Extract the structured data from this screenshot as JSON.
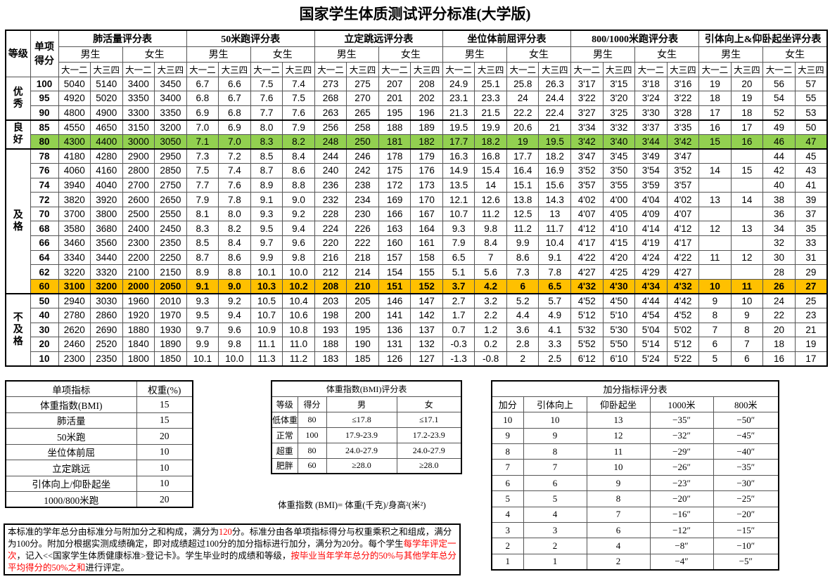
{
  "title": "国家学生体质测试评分标准(大学版)",
  "main_table": {
    "header_grade": "等级",
    "header_score": "单项得分",
    "groups": [
      "肺活量评分表",
      "50米跑评分表",
      "立定跳远评分表",
      "坐位体前屈评分表",
      "800/1000米跑评分表",
      "引体向上&仰卧起坐评分表"
    ],
    "sexes": [
      "男生",
      "女生"
    ],
    "years": [
      "大一二",
      "大三四"
    ],
    "grades": [
      {
        "label": "优秀",
        "rows": 3
      },
      {
        "label": "良好",
        "rows": 2
      },
      {
        "label": "及格",
        "rows": 10
      },
      {
        "label": "不及格",
        "rows": 5
      }
    ],
    "highlight_colors": {
      "green": "#92d050",
      "orange": "#ffc000"
    },
    "highlight_rows": {
      "80": "green",
      "60": "orange"
    },
    "rows": [
      {
        "score": "100",
        "values": [
          "5040",
          "5140",
          "3400",
          "3450",
          "6.7",
          "6.6",
          "7.5",
          "7.4",
          "273",
          "275",
          "207",
          "208",
          "24.9",
          "25.1",
          "25.8",
          "26.3",
          "3'17",
          "3'15",
          "3'18",
          "3'16",
          "19",
          "20",
          "56",
          "57"
        ]
      },
      {
        "score": "95",
        "values": [
          "4920",
          "5020",
          "3350",
          "3400",
          "6.8",
          "6.7",
          "7.6",
          "7.5",
          "268",
          "270",
          "201",
          "202",
          "23.1",
          "23.3",
          "24",
          "24.4",
          "3'22",
          "3'20",
          "3'24",
          "3'22",
          "18",
          "19",
          "54",
          "55"
        ]
      },
      {
        "score": "90",
        "values": [
          "4800",
          "4900",
          "3300",
          "3350",
          "6.9",
          "6.8",
          "7.7",
          "7.6",
          "263",
          "265",
          "195",
          "196",
          "21.3",
          "21.5",
          "22.2",
          "22.4",
          "3'27",
          "3'25",
          "3'30",
          "3'28",
          "17",
          "18",
          "52",
          "53"
        ]
      },
      {
        "score": "85",
        "values": [
          "4550",
          "4650",
          "3150",
          "3200",
          "7.0",
          "6.9",
          "8.0",
          "7.9",
          "256",
          "258",
          "188",
          "189",
          "19.5",
          "19.9",
          "20.6",
          "21",
          "3'34",
          "3'32",
          "3'37",
          "3'35",
          "16",
          "17",
          "49",
          "50"
        ]
      },
      {
        "score": "80",
        "values": [
          "4300",
          "4400",
          "3000",
          "3050",
          "7.1",
          "7.0",
          "8.3",
          "8.2",
          "248",
          "250",
          "181",
          "182",
          "17.7",
          "18.2",
          "19",
          "19.5",
          "3'42",
          "3'40",
          "3'44",
          "3'42",
          "15",
          "16",
          "46",
          "47"
        ]
      },
      {
        "score": "78",
        "values": [
          "4180",
          "4280",
          "2900",
          "2950",
          "7.3",
          "7.2",
          "8.5",
          "8.4",
          "244",
          "246",
          "178",
          "179",
          "16.3",
          "16.8",
          "17.7",
          "18.2",
          "3'47",
          "3'45",
          "3'49",
          "3'47",
          "",
          "",
          "44",
          "45"
        ]
      },
      {
        "score": "76",
        "values": [
          "4060",
          "4160",
          "2800",
          "2850",
          "7.5",
          "7.4",
          "8.7",
          "8.6",
          "240",
          "242",
          "175",
          "176",
          "14.9",
          "15.4",
          "16.4",
          "16.9",
          "3'52",
          "3'50",
          "3'54",
          "3'52",
          "14",
          "15",
          "42",
          "43"
        ]
      },
      {
        "score": "74",
        "values": [
          "3940",
          "4040",
          "2700",
          "2750",
          "7.7",
          "7.6",
          "8.9",
          "8.8",
          "236",
          "238",
          "172",
          "173",
          "13.5",
          "14",
          "15.1",
          "15.6",
          "3'57",
          "3'55",
          "3'59",
          "3'57",
          "",
          "",
          "40",
          "41"
        ]
      },
      {
        "score": "72",
        "values": [
          "3820",
          "3920",
          "2600",
          "2650",
          "7.9",
          "7.8",
          "9.1",
          "9.0",
          "232",
          "234",
          "169",
          "170",
          "12.1",
          "12.6",
          "13.8",
          "14.3",
          "4'02",
          "4'00",
          "4'04",
          "4'02",
          "13",
          "14",
          "38",
          "39"
        ]
      },
      {
        "score": "70",
        "values": [
          "3700",
          "3800",
          "2500",
          "2550",
          "8.1",
          "8.0",
          "9.3",
          "9.2",
          "228",
          "230",
          "166",
          "167",
          "10.7",
          "11.2",
          "12.5",
          "13",
          "4'07",
          "4'05",
          "4'09",
          "4'07",
          "",
          "",
          "36",
          "37"
        ]
      },
      {
        "score": "68",
        "values": [
          "3580",
          "3680",
          "2400",
          "2450",
          "8.3",
          "8.2",
          "9.5",
          "9.4",
          "224",
          "226",
          "163",
          "164",
          "9.3",
          "9.8",
          "11.2",
          "11.7",
          "4'12",
          "4'10",
          "4'14",
          "4'12",
          "12",
          "13",
          "34",
          "35"
        ]
      },
      {
        "score": "66",
        "values": [
          "3460",
          "3560",
          "2300",
          "2350",
          "8.5",
          "8.4",
          "9.7",
          "9.6",
          "220",
          "222",
          "160",
          "161",
          "7.9",
          "8.4",
          "9.9",
          "10.4",
          "4'17",
          "4'15",
          "4'19",
          "4'17",
          "",
          "",
          "32",
          "33"
        ]
      },
      {
        "score": "64",
        "values": [
          "3340",
          "3440",
          "2200",
          "2250",
          "8.7",
          "8.6",
          "9.9",
          "9.8",
          "216",
          "218",
          "157",
          "158",
          "6.5",
          "7",
          "8.6",
          "9.1",
          "4'22",
          "4'20",
          "4'24",
          "4'22",
          "11",
          "12",
          "30",
          "31"
        ]
      },
      {
        "score": "62",
        "values": [
          "3220",
          "3320",
          "2100",
          "2150",
          "8.9",
          "8.8",
          "10.1",
          "10.0",
          "212",
          "214",
          "154",
          "155",
          "5.1",
          "5.6",
          "7.3",
          "7.8",
          "4'27",
          "4'25",
          "4'29",
          "4'27",
          "",
          "",
          "28",
          "29"
        ]
      },
      {
        "score": "60",
        "values": [
          "3100",
          "3200",
          "2000",
          "2050",
          "9.1",
          "9.0",
          "10.3",
          "10.2",
          "208",
          "210",
          "151",
          "152",
          "3.7",
          "4.2",
          "6",
          "6.5",
          "4'32",
          "4'30",
          "4'34",
          "4'32",
          "10",
          "11",
          "26",
          "27"
        ]
      },
      {
        "score": "50",
        "values": [
          "2940",
          "3030",
          "1960",
          "2010",
          "9.3",
          "9.2",
          "10.5",
          "10.4",
          "203",
          "205",
          "146",
          "147",
          "2.7",
          "3.2",
          "5.2",
          "5.7",
          "4'52",
          "4'50",
          "4'44",
          "4'42",
          "9",
          "10",
          "24",
          "25"
        ]
      },
      {
        "score": "40",
        "values": [
          "2780",
          "2860",
          "1920",
          "1970",
          "9.5",
          "9.4",
          "10.7",
          "10.6",
          "198",
          "200",
          "141",
          "142",
          "1.7",
          "2.2",
          "4.4",
          "4.9",
          "5'12",
          "5'10",
          "4'54",
          "4'52",
          "8",
          "9",
          "22",
          "23"
        ]
      },
      {
        "score": "30",
        "values": [
          "2620",
          "2690",
          "1880",
          "1930",
          "9.7",
          "9.6",
          "10.9",
          "10.8",
          "193",
          "195",
          "136",
          "137",
          "0.7",
          "1.2",
          "3.6",
          "4.1",
          "5'32",
          "5'30",
          "5'04",
          "5'02",
          "7",
          "8",
          "20",
          "21"
        ]
      },
      {
        "score": "20",
        "values": [
          "2460",
          "2520",
          "1840",
          "1890",
          "9.9",
          "9.8",
          "11.1",
          "11.0",
          "188",
          "190",
          "131",
          "132",
          "-0.3",
          "0.2",
          "2.8",
          "3.3",
          "5'52",
          "5'50",
          "5'14",
          "5'12",
          "6",
          "7",
          "18",
          "19"
        ]
      },
      {
        "score": "10",
        "values": [
          "2300",
          "2350",
          "1800",
          "1850",
          "10.1",
          "10.0",
          "11.3",
          "11.2",
          "183",
          "185",
          "126",
          "127",
          "-1.3",
          "-0.8",
          "2",
          "2.5",
          "6'12",
          "6'10",
          "5'24",
          "5'22",
          "5",
          "6",
          "16",
          "17"
        ]
      }
    ]
  },
  "weights_table": {
    "headers": [
      "单项指标",
      "权重(%)"
    ],
    "rows": [
      [
        "体重指数(BMI)",
        "15"
      ],
      [
        "肺活量",
        "15"
      ],
      [
        "50米跑",
        "20"
      ],
      [
        "坐位体前屈",
        "10"
      ],
      [
        "立定跳远",
        "10"
      ],
      [
        "引体向上/仰卧起坐",
        "10"
      ],
      [
        "1000/800米跑",
        "20"
      ]
    ]
  },
  "bmi_table": {
    "title": "体重指数(BMI)评分表",
    "headers": [
      "等级",
      "得分",
      "男",
      "女"
    ],
    "rows": [
      [
        "低体重",
        "80",
        "≤17.8",
        "≤17.1"
      ],
      [
        "正常",
        "100",
        "17.9-23.9",
        "17.2-23.9"
      ],
      [
        "超重",
        "80",
        "24.0-27.9",
        "24.0-27.9"
      ],
      [
        "肥胖",
        "60",
        "≥28.0",
        "≥28.0"
      ]
    ],
    "formula": "体重指数 (BMI)= 体重(千克)/身高²(米²)"
  },
  "bonus_table": {
    "title": "加分指标评分表",
    "headers": [
      "加分",
      "引体向上",
      "仰卧起坐",
      "1000米",
      "800米"
    ],
    "rows": [
      [
        "10",
        "10",
        "13",
        "−35″",
        "−50″"
      ],
      [
        "9",
        "9",
        "12",
        "−32″",
        "−45″"
      ],
      [
        "8",
        "8",
        "11",
        "−29″",
        "−40″"
      ],
      [
        "7",
        "7",
        "10",
        "−26″",
        "−35″"
      ],
      [
        "6",
        "6",
        "9",
        "−23″",
        "−30″"
      ],
      [
        "5",
        "5",
        "8",
        "−20″",
        "−25″"
      ],
      [
        "4",
        "4",
        "7",
        "−16″",
        "−20″"
      ],
      [
        "3",
        "3",
        "6",
        "−12″",
        "−15″"
      ],
      [
        "2",
        "2",
        "4",
        "−8″",
        "−10″"
      ],
      [
        "1",
        "1",
        "2",
        "−4″",
        "−5″"
      ]
    ]
  },
  "note": {
    "accent_color": "#ff0000",
    "segments": [
      {
        "text": "本标准的学年总分由标准分与附加分之和构成，满分为",
        "red": false
      },
      {
        "text": "120",
        "red": true
      },
      {
        "text": "分。标准分由各单项指标得分与权重乘积之和组成，满分为100分。附加分根据实测成绩确定，即对成绩超过100分的加分指标进行加分，满分为20分。每个学生",
        "red": false
      },
      {
        "text": "每学年评定一次",
        "red": true
      },
      {
        "text": "，记入<<国家学生体质健康标准>登记卡》。学生毕业时的成绩和等级，",
        "red": false
      },
      {
        "text": "按毕业当年学年总分的50%与其他学年总分平均得分的50%之和",
        "red": true
      },
      {
        "text": "进行评定。",
        "red": false
      }
    ]
  }
}
